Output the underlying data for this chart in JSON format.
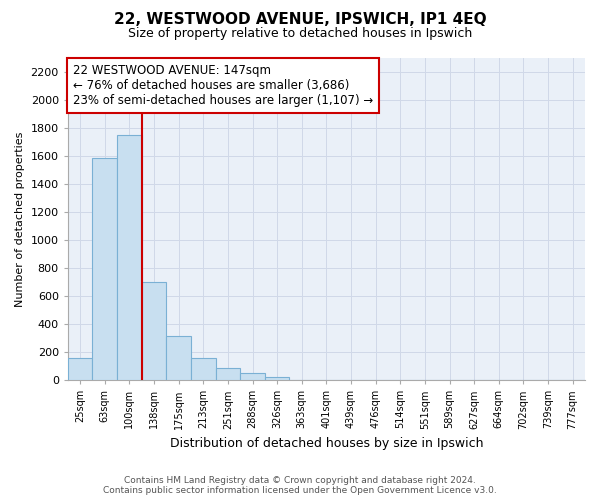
{
  "title": "22, WESTWOOD AVENUE, IPSWICH, IP1 4EQ",
  "subtitle": "Size of property relative to detached houses in Ipswich",
  "xlabel": "Distribution of detached houses by size in Ipswich",
  "ylabel": "Number of detached properties",
  "bar_labels": [
    "25sqm",
    "63sqm",
    "100sqm",
    "138sqm",
    "175sqm",
    "213sqm",
    "251sqm",
    "288sqm",
    "326sqm",
    "363sqm",
    "401sqm",
    "439sqm",
    "476sqm",
    "514sqm",
    "551sqm",
    "589sqm",
    "627sqm",
    "664sqm",
    "702sqm",
    "739sqm",
    "777sqm"
  ],
  "bar_values": [
    160,
    1580,
    1750,
    700,
    315,
    155,
    85,
    50,
    25,
    0,
    0,
    0,
    0,
    0,
    0,
    0,
    0,
    0,
    0,
    0,
    0
  ],
  "bar_color": "#c8dff0",
  "bar_edge_color": "#7ab0d4",
  "vline_color": "#cc0000",
  "vline_index": 2.5,
  "annotation_line1": "22 WESTWOOD AVENUE: 147sqm",
  "annotation_line2": "← 76% of detached houses are smaller (3,686)",
  "annotation_line3": "23% of semi-detached houses are larger (1,107) →",
  "annotation_box_color": "white",
  "annotation_box_edge": "#cc0000",
  "ylim": [
    0,
    2300
  ],
  "yticks": [
    0,
    200,
    400,
    600,
    800,
    1000,
    1200,
    1400,
    1600,
    1800,
    2000,
    2200
  ],
  "footer_line1": "Contains HM Land Registry data © Crown copyright and database right 2024.",
  "footer_line2": "Contains public sector information licensed under the Open Government Licence v3.0.",
  "bg_color": "#ffffff",
  "grid_color": "#d0d8e8",
  "plot_bg_color": "#eaf0f8"
}
